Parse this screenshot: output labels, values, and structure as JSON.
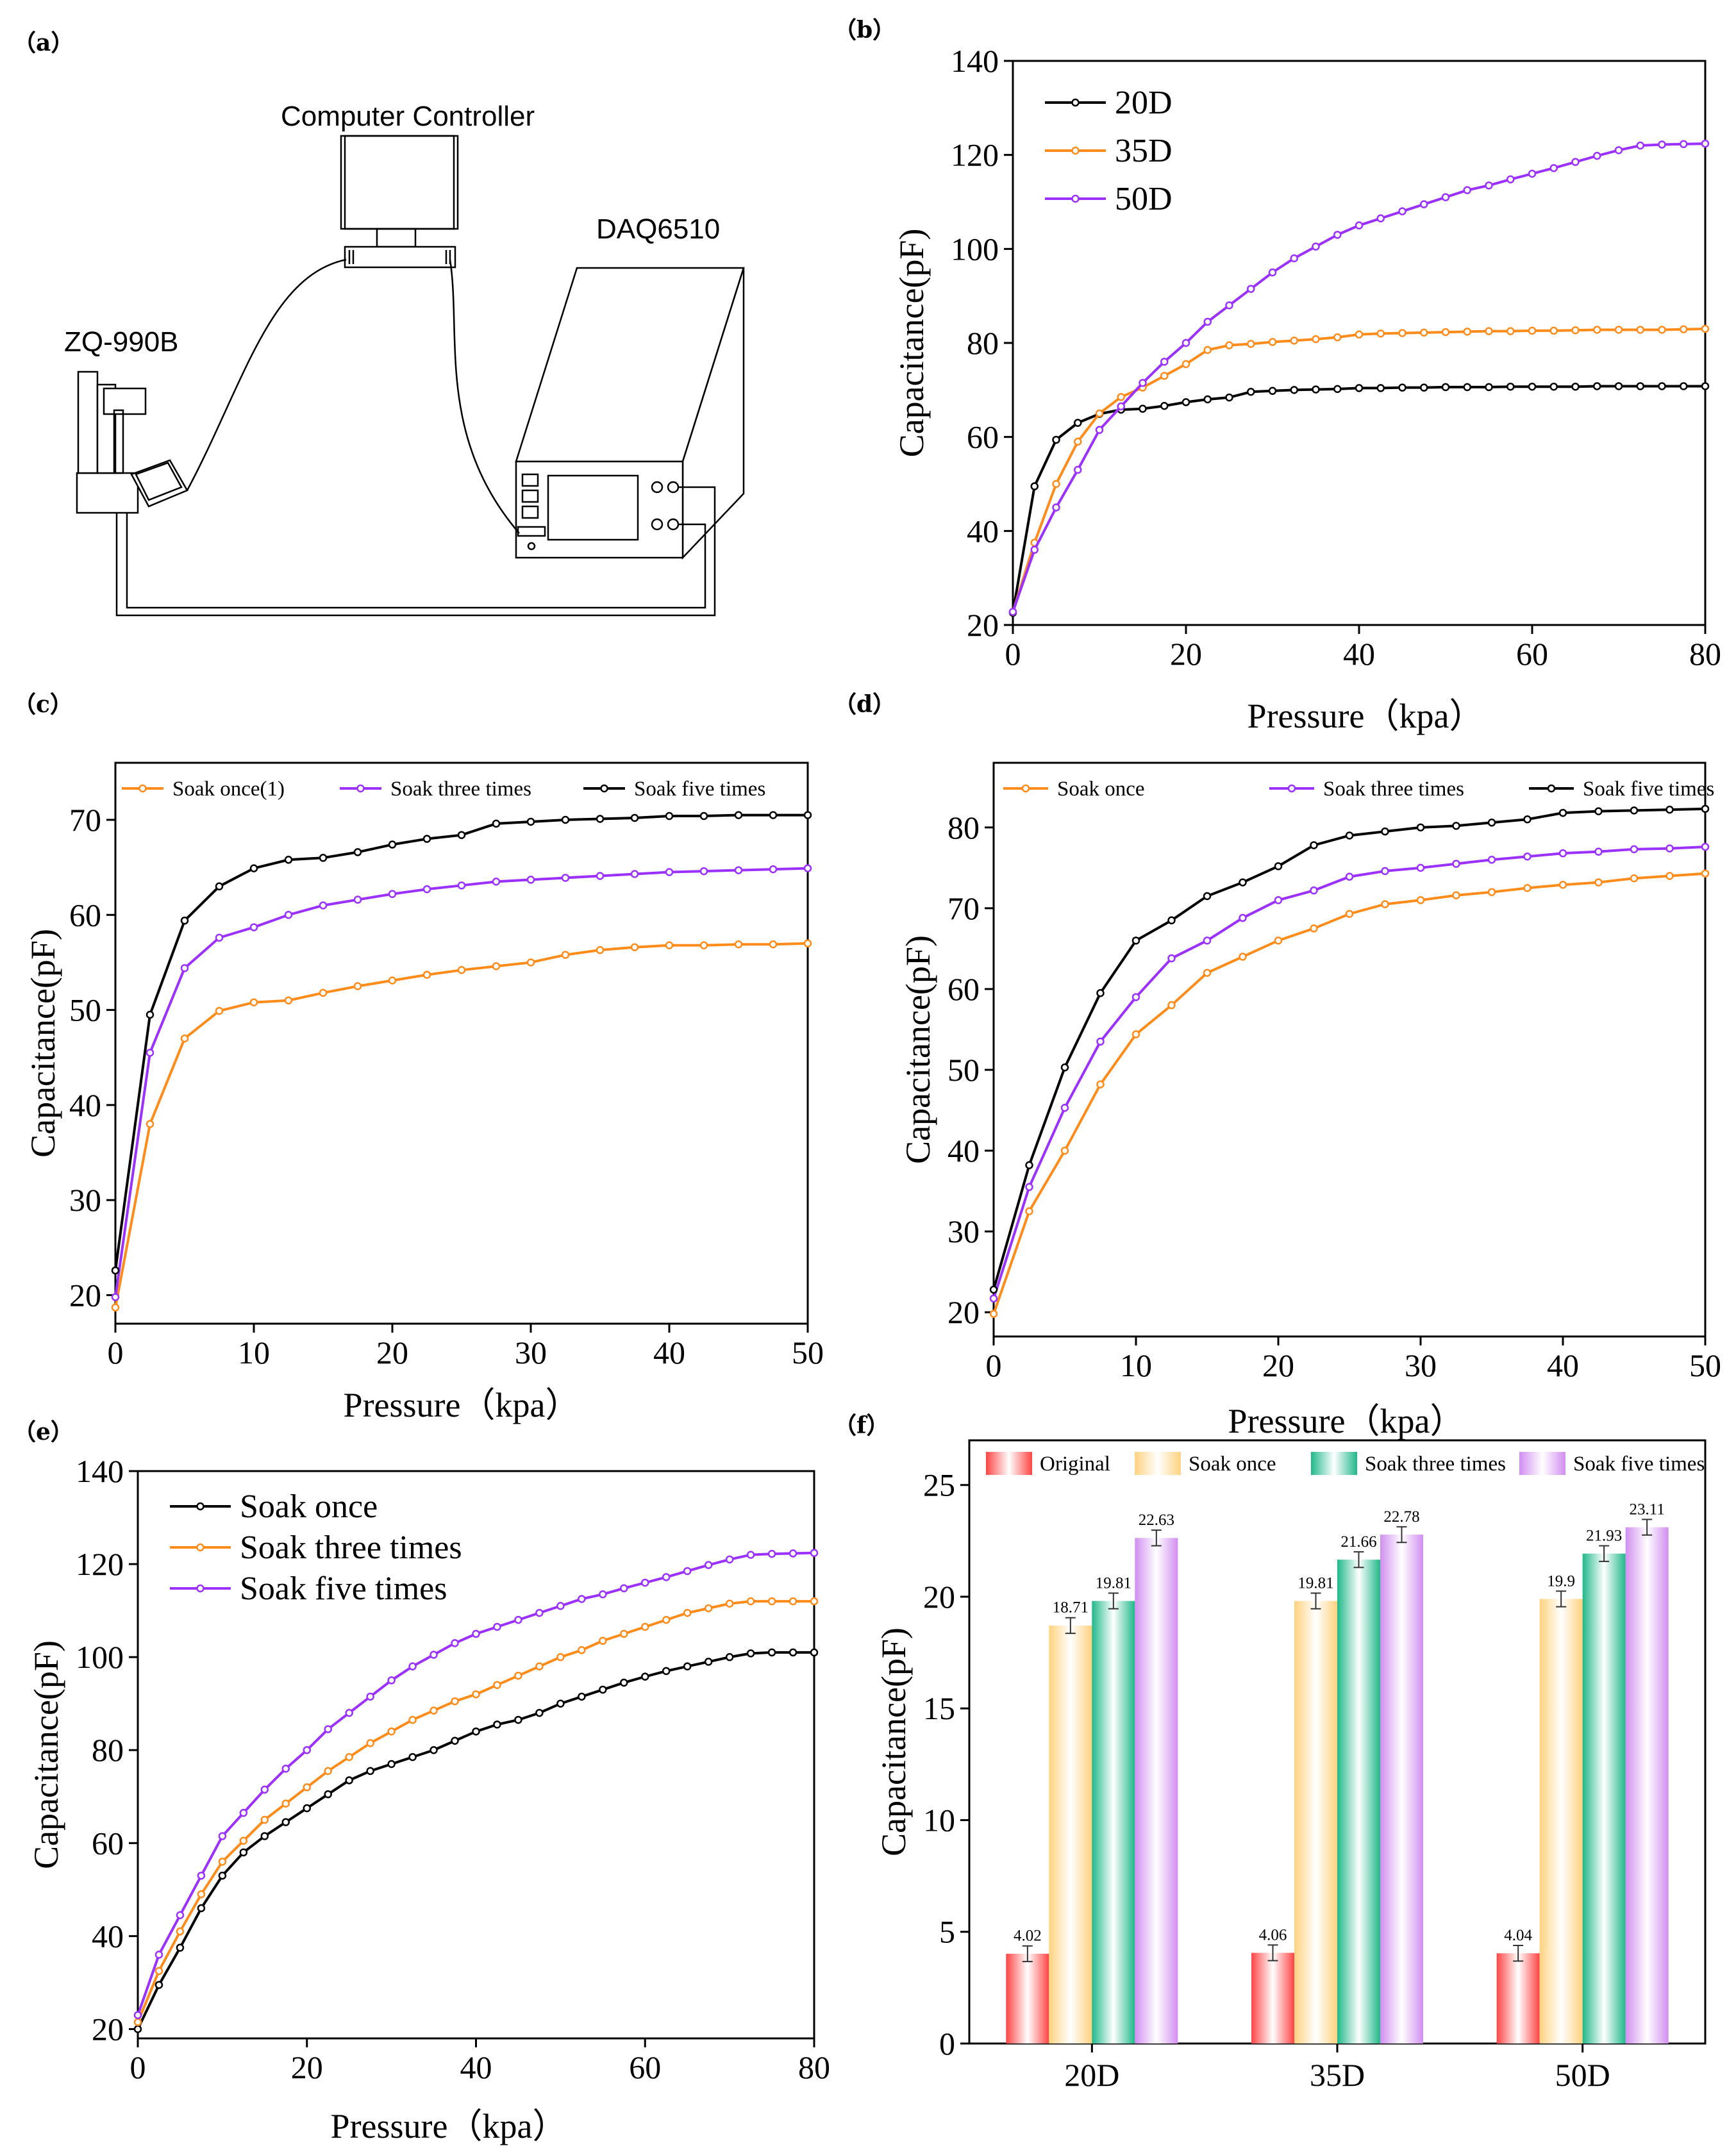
{
  "panels": {
    "a": "（a）",
    "b": "（b）",
    "c": "（c）",
    "d": "（d）",
    "e": "（e）",
    "f": "（f）"
  },
  "diagram": {
    "computer_label": "Computer Controller",
    "daq_label": "DAQ6510",
    "tester_label": "ZQ-990B"
  },
  "chart_data": [
    {
      "panel": "b",
      "type": "line",
      "xlabel": "Pressure（kpa）",
      "ylabel": "Capacitance(pF)",
      "xlim": [
        0,
        80
      ],
      "ylim": [
        20,
        140
      ],
      "xticks": [
        0,
        20,
        40,
        60,
        80
      ],
      "yticks": [
        20,
        40,
        60,
        80,
        100,
        120,
        140
      ],
      "legend_position": "top-left",
      "x": [
        0,
        2.5,
        5,
        7.5,
        10,
        12.5,
        15,
        17.5,
        20,
        22.5,
        25,
        27.5,
        30,
        32.5,
        35,
        37.5,
        40,
        42.5,
        45,
        47.5,
        50,
        52.5,
        55,
        57.5,
        60,
        62.5,
        65,
        67.5,
        70,
        72.5,
        75,
        77.5,
        80
      ],
      "series": [
        {
          "name": "20D",
          "color": "#000000",
          "values": [
            22.6,
            49.5,
            59.4,
            63,
            64.9,
            65.8,
            66,
            66.6,
            67.4,
            68,
            68.4,
            69.6,
            69.8,
            70,
            70.1,
            70.2,
            70.4,
            70.4,
            70.5,
            70.5,
            70.6,
            70.6,
            70.6,
            70.7,
            70.7,
            70.7,
            70.7,
            70.8,
            70.8,
            70.8,
            70.8,
            70.8,
            70.8
          ]
        },
        {
          "name": "35D",
          "color": "#ff8c1a",
          "values": [
            22.8,
            37.5,
            50,
            59,
            65,
            68.5,
            70.5,
            73,
            75.5,
            78.5,
            79.5,
            79.8,
            80.2,
            80.5,
            80.8,
            81.2,
            81.8,
            82,
            82.1,
            82.2,
            82.3,
            82.4,
            82.5,
            82.5,
            82.6,
            82.6,
            82.7,
            82.8,
            82.8,
            82.8,
            82.8,
            82.9,
            83
          ]
        },
        {
          "name": "50D",
          "color": "#9b30ff",
          "values": [
            22.8,
            36,
            45,
            53,
            61.5,
            66.5,
            71.5,
            76,
            80,
            84.5,
            88,
            91.5,
            95,
            98,
            100.5,
            103,
            105,
            106.5,
            108,
            109.5,
            111,
            112.5,
            113.5,
            114.8,
            116,
            117.2,
            118.5,
            119.8,
            121,
            122,
            122.2,
            122.3,
            122.4
          ]
        }
      ]
    },
    {
      "panel": "c",
      "type": "line",
      "xlabel": "Pressure（kpa）",
      "ylabel": "Capacitance(pF)",
      "xlim": [
        0,
        50
      ],
      "ylim": [
        17,
        76
      ],
      "xticks": [
        0,
        10,
        20,
        30,
        40,
        50
      ],
      "yticks": [
        20,
        30,
        40,
        50,
        60,
        70
      ],
      "legend_position": "top",
      "x": [
        0,
        2.5,
        5,
        7.5,
        10,
        12.5,
        15,
        17.5,
        20,
        22.5,
        25,
        27.5,
        30,
        32.5,
        35,
        37.5,
        40,
        42.5,
        45,
        47.5,
        50
      ],
      "series": [
        {
          "name": "Soak once(1)",
          "color": "#ff8c1a",
          "values": [
            18.7,
            38,
            47,
            49.9,
            50.8,
            51,
            51.8,
            52.5,
            53.1,
            53.7,
            54.2,
            54.6,
            55,
            55.8,
            56.3,
            56.6,
            56.8,
            56.8,
            56.9,
            56.9,
            57
          ]
        },
        {
          "name": "Soak three times",
          "color": "#9b30ff",
          "values": [
            19.8,
            45.5,
            54.4,
            57.6,
            58.7,
            60,
            61,
            61.6,
            62.2,
            62.7,
            63.1,
            63.5,
            63.7,
            63.9,
            64.1,
            64.3,
            64.5,
            64.6,
            64.7,
            64.8,
            64.9
          ]
        },
        {
          "name": "Soak five times",
          "color": "#000000",
          "values": [
            22.6,
            49.5,
            59.4,
            63,
            64.9,
            65.8,
            66,
            66.6,
            67.4,
            68,
            68.4,
            69.6,
            69.8,
            70,
            70.1,
            70.2,
            70.4,
            70.4,
            70.5,
            70.5,
            70.5
          ]
        }
      ]
    },
    {
      "panel": "d",
      "type": "line",
      "xlabel": "Pressure（kpa）",
      "ylabel": "Capacitance(pF)",
      "xlim": [
        0,
        50
      ],
      "ylim": [
        17,
        88
      ],
      "xticks": [
        0,
        10,
        20,
        30,
        40,
        50
      ],
      "yticks": [
        20,
        30,
        40,
        50,
        60,
        70,
        80
      ],
      "legend_position": "top",
      "x": [
        0,
        2.5,
        5,
        7.5,
        10,
        12.5,
        15,
        17.5,
        20,
        22.5,
        25,
        27.5,
        30,
        32.5,
        35,
        37.5,
        40,
        42.5,
        45,
        47.5,
        50
      ],
      "series": [
        {
          "name": "Soak once",
          "color": "#ff8c1a",
          "values": [
            19.8,
            32.5,
            40,
            48.2,
            54.4,
            58,
            62,
            64,
            66,
            67.5,
            69.3,
            70.5,
            71,
            71.6,
            72,
            72.5,
            72.9,
            73.2,
            73.7,
            74,
            74.3
          ]
        },
        {
          "name": "Soak three times",
          "color": "#9b30ff",
          "values": [
            21.7,
            35.5,
            45.3,
            53.5,
            59,
            63.8,
            66,
            68.8,
            71,
            72.2,
            73.9,
            74.6,
            75,
            75.5,
            76,
            76.4,
            76.8,
            77,
            77.3,
            77.4,
            77.6
          ]
        },
        {
          "name": "Soak five times",
          "color": "#000000",
          "values": [
            22.8,
            38.2,
            50.3,
            59.5,
            66,
            68.5,
            71.5,
            73.2,
            75.2,
            77.8,
            79,
            79.5,
            80,
            80.2,
            80.6,
            81,
            81.8,
            82,
            82.1,
            82.2,
            82.3
          ]
        }
      ]
    },
    {
      "panel": "e",
      "type": "line",
      "xlabel": "Pressure（kpa）",
      "ylabel": "Capacitance(pF)",
      "xlim": [
        0,
        80
      ],
      "ylim": [
        18,
        140
      ],
      "xticks": [
        0,
        20,
        40,
        60,
        80
      ],
      "yticks": [
        20,
        40,
        60,
        80,
        100,
        120,
        140
      ],
      "legend_position": "top-left",
      "x": [
        0,
        2.5,
        5,
        7.5,
        10,
        12.5,
        15,
        17.5,
        20,
        22.5,
        25,
        27.5,
        30,
        32.5,
        35,
        37.5,
        40,
        42.5,
        45,
        47.5,
        50,
        52.5,
        55,
        57.5,
        60,
        62.5,
        65,
        67.5,
        70,
        72.5,
        75,
        77.5,
        80
      ],
      "series": [
        {
          "name": "Soak once",
          "color": "#000000",
          "values": [
            20,
            29.5,
            37.5,
            46,
            53,
            58,
            61.5,
            64.5,
            67.5,
            70.5,
            73.5,
            75.5,
            77,
            78.5,
            80,
            82,
            84,
            85.5,
            86.5,
            88,
            90,
            91.5,
            93,
            94.5,
            95.8,
            97,
            98,
            99,
            100,
            100.8,
            101,
            101,
            101
          ]
        },
        {
          "name": "Soak three times",
          "color": "#ff8c1a",
          "values": [
            21.5,
            32.5,
            41,
            49,
            56,
            60.5,
            65,
            68.5,
            72,
            75.5,
            78.5,
            81.5,
            84,
            86.5,
            88.5,
            90.5,
            92,
            94,
            96,
            98,
            100,
            101.5,
            103.5,
            105,
            106.5,
            108,
            109.5,
            110.5,
            111.5,
            112,
            112,
            112,
            112
          ]
        },
        {
          "name": "Soak five times",
          "color": "#9b30ff",
          "values": [
            23,
            36,
            44.5,
            53,
            61.5,
            66.5,
            71.5,
            76,
            80,
            84.5,
            88,
            91.5,
            95,
            98,
            100.5,
            103,
            105,
            106.5,
            108,
            109.5,
            111,
            112.5,
            113.5,
            114.8,
            116,
            117.2,
            118.5,
            119.8,
            121,
            122,
            122.2,
            122.3,
            122.4
          ]
        }
      ]
    },
    {
      "panel": "f",
      "type": "bar",
      "ylabel": "Capacitance(pF)",
      "ylim": [
        0,
        27
      ],
      "yticks": [
        0,
        5,
        10,
        15,
        20,
        25
      ],
      "categories": [
        "20D",
        "35D",
        "50D"
      ],
      "legend_position": "top",
      "series": [
        {
          "name": "Original",
          "color": "#ff4444",
          "values": [
            4.02,
            4.06,
            4.04
          ],
          "labels": [
            "4.02",
            "4.06",
            "4.04"
          ],
          "errors": [
            0.35,
            0.35,
            0.35
          ]
        },
        {
          "name": "Soak once",
          "color": "#ffd27f",
          "values": [
            18.71,
            19.81,
            19.9
          ],
          "labels": [
            "18.71",
            "19.81",
            "19.9"
          ],
          "errors": [
            0.35,
            0.35,
            0.35
          ]
        },
        {
          "name": "Soak three times",
          "color": "#1fb889",
          "values": [
            19.81,
            21.66,
            21.93
          ],
          "labels": [
            "19.81",
            "21.66",
            "21.93"
          ],
          "errors": [
            0.35,
            0.35,
            0.35
          ]
        },
        {
          "name": "Soak five times",
          "color": "#d18ef0",
          "values": [
            22.63,
            22.78,
            23.11
          ],
          "labels": [
            "22.63",
            "22.78",
            "23.11"
          ],
          "errors": [
            0.35,
            0.35,
            0.35
          ]
        }
      ]
    }
  ]
}
